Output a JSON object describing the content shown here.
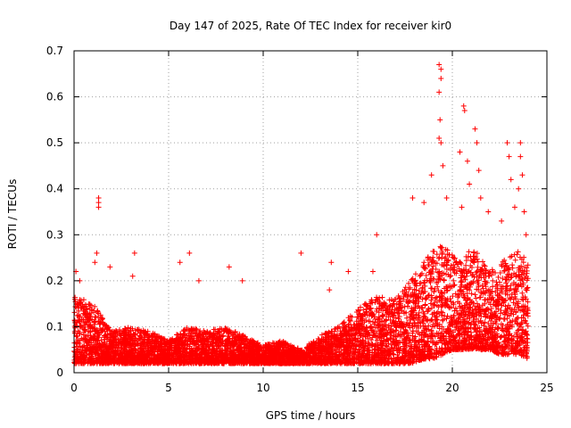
{
  "chart_data": {
    "type": "scatter",
    "title": "Day 147 of 2025, Rate Of TEC Index for receiver kir0",
    "xlabel": "GPS time / hours",
    "ylabel": "ROTI / TECUs",
    "xlim": [
      0,
      25
    ],
    "ylim": [
      0,
      0.7
    ],
    "x_ticks": [
      0,
      5,
      10,
      15,
      20,
      25
    ],
    "y_ticks": [
      0,
      0.1,
      0.2,
      0.3,
      0.4,
      0.5,
      0.6,
      0.7
    ],
    "grid": true,
    "marker": "+",
    "series": [
      {
        "name": "ROTI",
        "color": "#ff0000",
        "envelope": {
          "x": [
            0,
            0.5,
            1,
            1.5,
            2,
            3,
            4,
            5,
            6,
            7,
            8,
            9,
            10,
            11,
            12,
            13,
            14,
            15,
            16,
            17,
            17.8,
            18.5,
            19,
            19.5,
            20,
            20.5,
            21,
            21.5,
            22,
            22.5,
            23,
            23.5,
            24
          ],
          "typical_max": [
            0.17,
            0.16,
            0.15,
            0.12,
            0.09,
            0.1,
            0.09,
            0.07,
            0.1,
            0.09,
            0.1,
            0.08,
            0.06,
            0.07,
            0.05,
            0.08,
            0.1,
            0.14,
            0.17,
            0.16,
            0.2,
            0.24,
            0.27,
            0.28,
            0.26,
            0.24,
            0.28,
            0.25,
            0.22,
            0.24,
            0.25,
            0.27,
            0.25
          ],
          "typical_min": [
            0.02,
            0.02,
            0.02,
            0.02,
            0.02,
            0.02,
            0.02,
            0.02,
            0.02,
            0.02,
            0.02,
            0.02,
            0.02,
            0.02,
            0.02,
            0.02,
            0.02,
            0.02,
            0.02,
            0.02,
            0.02,
            0.03,
            0.03,
            0.04,
            0.05,
            0.05,
            0.05,
            0.05,
            0.05,
            0.04,
            0.04,
            0.04,
            0.03
          ]
        },
        "outliers": [
          {
            "x": 0.1,
            "y": 0.22
          },
          {
            "x": 0.3,
            "y": 0.2
          },
          {
            "x": 1.1,
            "y": 0.24
          },
          {
            "x": 1.3,
            "y": 0.38
          },
          {
            "x": 1.3,
            "y": 0.37
          },
          {
            "x": 1.3,
            "y": 0.36
          },
          {
            "x": 1.2,
            "y": 0.26
          },
          {
            "x": 1.9,
            "y": 0.23
          },
          {
            "x": 3.2,
            "y": 0.26
          },
          {
            "x": 3.1,
            "y": 0.21
          },
          {
            "x": 5.6,
            "y": 0.24
          },
          {
            "x": 6.1,
            "y": 0.26
          },
          {
            "x": 6.6,
            "y": 0.2
          },
          {
            "x": 8.2,
            "y": 0.23
          },
          {
            "x": 8.9,
            "y": 0.2
          },
          {
            "x": 12.0,
            "y": 0.26
          },
          {
            "x": 13.6,
            "y": 0.24
          },
          {
            "x": 13.5,
            "y": 0.18
          },
          {
            "x": 14.5,
            "y": 0.22
          },
          {
            "x": 16.0,
            "y": 0.3
          },
          {
            "x": 15.8,
            "y": 0.22
          },
          {
            "x": 17.9,
            "y": 0.38
          },
          {
            "x": 18.5,
            "y": 0.37
          },
          {
            "x": 18.9,
            "y": 0.43
          },
          {
            "x": 19.3,
            "y": 0.67
          },
          {
            "x": 19.4,
            "y": 0.66
          },
          {
            "x": 19.4,
            "y": 0.64
          },
          {
            "x": 19.3,
            "y": 0.61
          },
          {
            "x": 19.35,
            "y": 0.55
          },
          {
            "x": 19.3,
            "y": 0.51
          },
          {
            "x": 19.4,
            "y": 0.5
          },
          {
            "x": 19.5,
            "y": 0.45
          },
          {
            "x": 19.7,
            "y": 0.38
          },
          {
            "x": 20.4,
            "y": 0.48
          },
          {
            "x": 20.6,
            "y": 0.58
          },
          {
            "x": 20.65,
            "y": 0.57
          },
          {
            "x": 20.8,
            "y": 0.46
          },
          {
            "x": 20.9,
            "y": 0.41
          },
          {
            "x": 20.5,
            "y": 0.36
          },
          {
            "x": 21.2,
            "y": 0.53
          },
          {
            "x": 21.3,
            "y": 0.5
          },
          {
            "x": 21.4,
            "y": 0.44
          },
          {
            "x": 21.5,
            "y": 0.38
          },
          {
            "x": 21.9,
            "y": 0.35
          },
          {
            "x": 22.6,
            "y": 0.33
          },
          {
            "x": 22.9,
            "y": 0.5
          },
          {
            "x": 23.0,
            "y": 0.47
          },
          {
            "x": 23.1,
            "y": 0.42
          },
          {
            "x": 23.3,
            "y": 0.36
          },
          {
            "x": 23.5,
            "y": 0.4
          },
          {
            "x": 23.6,
            "y": 0.5
          },
          {
            "x": 23.6,
            "y": 0.47
          },
          {
            "x": 23.7,
            "y": 0.43
          },
          {
            "x": 23.8,
            "y": 0.35
          },
          {
            "x": 23.9,
            "y": 0.3
          }
        ]
      }
    ]
  }
}
